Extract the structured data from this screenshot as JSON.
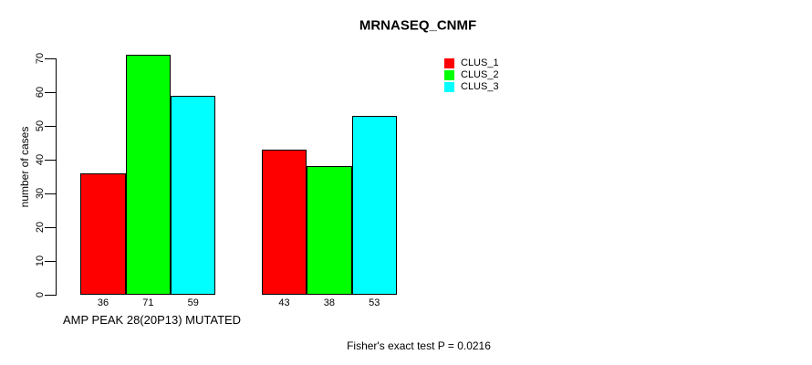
{
  "chart_data": {
    "type": "bar",
    "title": "MRNASEQ_CNMF",
    "ylabel": "number of cases",
    "xlabel": "AMP PEAK 28(20P13) MUTATED",
    "note": "Fisher's exact test P = 0.0216",
    "categories": [
      "AMP PEAK 28(20P13) MUTATED",
      ""
    ],
    "series": [
      {
        "name": "CLUS_1",
        "color": "#FF0000",
        "values": [
          36,
          43
        ]
      },
      {
        "name": "CLUS_2",
        "color": "#00FF00",
        "values": [
          71,
          38
        ]
      },
      {
        "name": "CLUS_3",
        "color": "#00FFFF",
        "values": [
          59,
          53
        ]
      }
    ],
    "bar_value_labels": [
      [
        36,
        71,
        59
      ],
      [
        43,
        38,
        53
      ]
    ],
    "ylim": [
      0,
      70
    ],
    "yticks": [
      0,
      10,
      20,
      30,
      40,
      50,
      60,
      70
    ],
    "legend_position": "top-right",
    "grid": false
  }
}
